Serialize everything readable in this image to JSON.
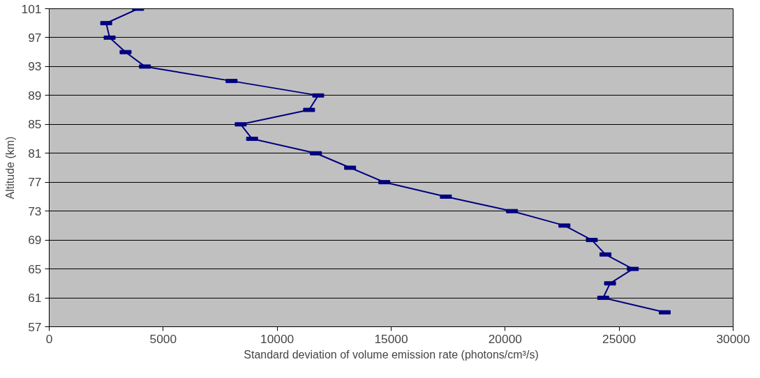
{
  "chart_data": {
    "type": "line",
    "xlabel": "Standard deviation of volume emission rate (photons/cm³/s)",
    "ylabel": "Altitude (km)",
    "series": [
      {
        "color": "#000080",
        "x": [
          3900,
          2500,
          2650,
          3350,
          4200,
          8000,
          11800,
          11400,
          8400,
          8900,
          11700,
          13200,
          14700,
          17400,
          20300,
          22600,
          23800,
          24400,
          25600,
          24600,
          24300,
          27000
        ],
        "values": [
          101,
          99,
          97,
          95,
          93,
          91,
          89,
          87,
          85,
          83,
          81,
          79,
          77,
          75,
          73,
          71,
          69,
          67,
          65,
          63,
          61,
          59
        ]
      }
    ],
    "xlim": [
      0,
      30000
    ],
    "xticks": [
      0,
      5000,
      10000,
      15000,
      20000,
      25000,
      30000
    ],
    "ylim": [
      57,
      101
    ],
    "yticks": [
      57,
      61,
      65,
      69,
      73,
      77,
      81,
      85,
      89,
      93,
      97,
      101
    ],
    "grid": "y",
    "marker": "square",
    "line_style": "solid"
  }
}
